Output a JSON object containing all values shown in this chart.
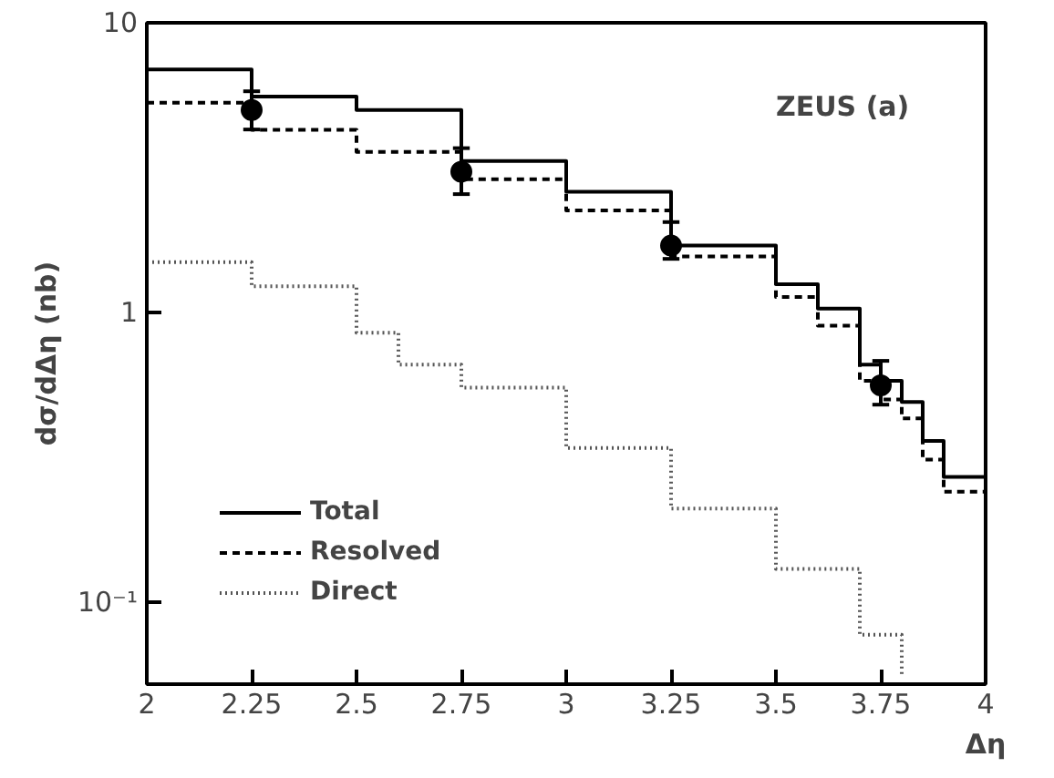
{
  "chart_data": {
    "type": "step",
    "xlabel": "Δη",
    "ylabel": "dσ/dΔη (nb)",
    "log": "y",
    "xlim": [
      2,
      4
    ],
    "xticks": [
      2,
      2.25,
      2.5,
      2.75,
      3,
      3.25,
      3.5,
      3.75,
      4
    ],
    "ylim": [
      0.052,
      10
    ],
    "yticks": [
      {
        "value": 0.1,
        "label": "10⁻¹"
      },
      1,
      10
    ],
    "grid": false,
    "legend": "bottom left",
    "annotations": [
      "ZEUS (a)"
    ],
    "series": [
      {
        "name": "Total",
        "color": "#000000",
        "line_style": "solid",
        "x": [
          2,
          2.25,
          2.5,
          2.75,
          3,
          3.25,
          3.5,
          3.6,
          3.7,
          3.75,
          3.8,
          3.85,
          3.9,
          4
        ],
        "values": [
          6.9,
          5.56,
          5.0,
          3.33,
          2.61,
          1.7,
          1.25,
          1.03,
          0.66,
          0.58,
          0.49,
          0.36,
          0.27,
          0.215
        ]
      },
      {
        "name": "Resolved",
        "color": "#000000",
        "line_style": "dashed",
        "x": [
          2,
          2.25,
          2.5,
          2.75,
          3,
          3.25,
          3.5,
          3.6,
          3.7,
          3.75,
          3.8,
          3.85,
          3.9,
          4
        ],
        "values": [
          5.3,
          4.27,
          3.58,
          2.88,
          2.25,
          1.56,
          1.13,
          0.9,
          0.58,
          0.5,
          0.43,
          0.31,
          0.24,
          0.185
        ]
      },
      {
        "name": "Direct",
        "color": "#555555",
        "line_style": "dotted",
        "x": [
          2,
          2.25,
          2.5,
          2.6,
          2.75,
          3,
          3.25,
          3.5,
          3.7,
          3.8
        ],
        "values": [
          1.49,
          1.23,
          0.85,
          0.66,
          0.55,
          0.34,
          0.21,
          0.13,
          0.077,
          0.055
        ]
      },
      {
        "type": "scatter",
        "marker": "circle",
        "color": "#000000",
        "x": [
          2.25,
          2.75,
          3.25,
          3.75
        ],
        "values": [
          5.0,
          3.06,
          1.7,
          0.56
        ],
        "errors": [
          [
            4.28,
            5.8
          ],
          [
            2.56,
            3.69
          ],
          [
            1.53,
            2.05
          ],
          [
            0.48,
            0.68
          ]
        ]
      }
    ]
  }
}
